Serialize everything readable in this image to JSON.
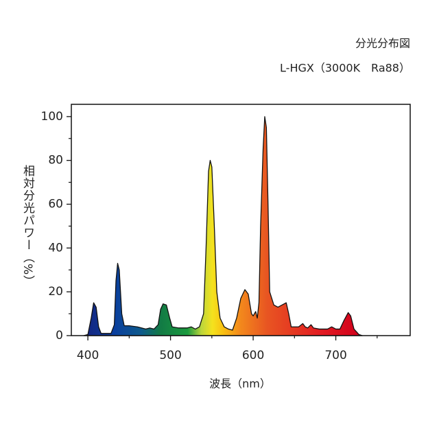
{
  "chart_data": {
    "type": "area",
    "title": "分光分布図",
    "subtitle": "L-HGX（3000K　Ra88）",
    "x_label": "波長（nm）",
    "y_label": "相対分光パワー（%）",
    "xlim": [
      380,
      790
    ],
    "ylim": [
      0,
      105.6
    ],
    "xticks": [
      400,
      500,
      600,
      700
    ],
    "x_minor_ticks": [
      450,
      550,
      650,
      750
    ],
    "yticks": [
      0,
      20,
      40,
      60,
      80,
      100
    ],
    "y_minor_ticks": [
      10,
      30,
      50,
      70,
      90
    ],
    "x": [
      395,
      400,
      404,
      407,
      410,
      413,
      416,
      420,
      428,
      432,
      434,
      436,
      438,
      441,
      444,
      450,
      460,
      470,
      475,
      480,
      485,
      488,
      491,
      495,
      499,
      502,
      510,
      520,
      525,
      530,
      535,
      540,
      543,
      546,
      548,
      550,
      553,
      556,
      560,
      565,
      570,
      575,
      580,
      585,
      590,
      594,
      598,
      600,
      603,
      605,
      607,
      609,
      612,
      614,
      616,
      618,
      620,
      625,
      630,
      635,
      640,
      643,
      646,
      650,
      655,
      660,
      663,
      666,
      670,
      673,
      680,
      690,
      695,
      700,
      705,
      710,
      715,
      718,
      722,
      728,
      732
    ],
    "values": [
      0,
      0.5,
      8,
      15,
      13,
      4,
      1,
      1,
      1,
      5,
      25,
      33,
      30,
      10,
      4.5,
      4.5,
      4,
      3,
      3.5,
      3,
      5,
      12,
      14.5,
      14,
      8,
      4,
      3.5,
      3.5,
      4,
      3,
      4,
      10,
      40,
      75,
      80,
      77,
      50,
      20,
      8,
      4,
      3,
      2.5,
      8,
      17,
      21,
      19,
      10,
      9,
      11,
      8,
      15,
      50,
      85,
      100,
      95,
      60,
      20,
      14,
      13,
      14,
      15,
      10,
      4,
      4,
      4,
      5.5,
      4,
      3.5,
      5,
      3.5,
      3,
      3,
      4,
      3,
      3,
      7,
      10.5,
      9,
      3,
      0.5,
      0
    ]
  }
}
